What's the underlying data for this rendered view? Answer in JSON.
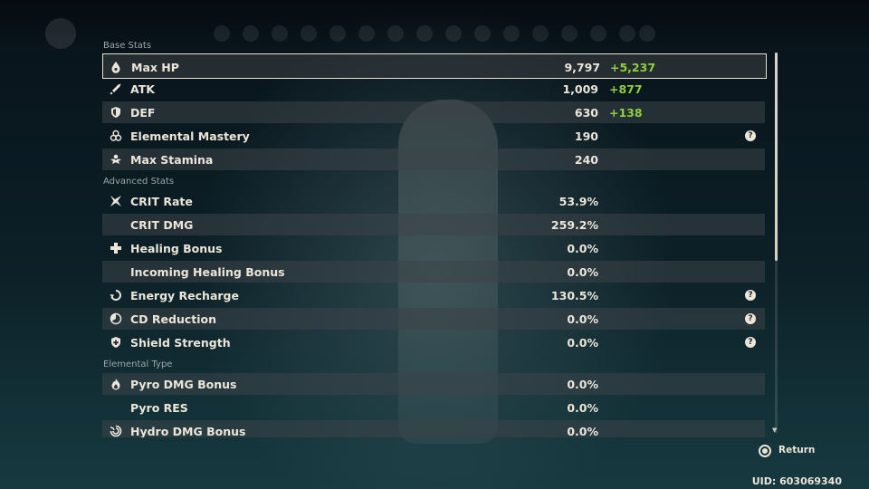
{
  "sections": {
    "base": "Base Stats",
    "advanced": "Advanced Stats",
    "elemental": "Elemental Type"
  },
  "base_stats": [
    {
      "label": "Max HP",
      "value": "9,797",
      "bonus": "+5,237",
      "icon": "hp-drop-icon"
    },
    {
      "label": "ATK",
      "value": "1,009",
      "bonus": "+877",
      "icon": "sword-icon"
    },
    {
      "label": "DEF",
      "value": "630",
      "bonus": "+138",
      "icon": "shield-icon"
    },
    {
      "label": "Elemental Mastery",
      "value": "190",
      "icon": "elemental-mastery-icon",
      "help": true
    },
    {
      "label": "Max Stamina",
      "value": "240",
      "icon": "stamina-icon"
    }
  ],
  "advanced_stats": [
    {
      "label": "CRIT Rate",
      "value": "53.9%",
      "icon": "crit-icon"
    },
    {
      "label": "CRIT DMG",
      "value": "259.2%"
    },
    {
      "label": "Healing Bonus",
      "value": "0.0%",
      "icon": "healing-cross-icon"
    },
    {
      "label": "Incoming Healing Bonus",
      "value": "0.0%"
    },
    {
      "label": "Energy Recharge",
      "value": "130.5%",
      "icon": "energy-recharge-icon",
      "help": true
    },
    {
      "label": "CD Reduction",
      "value": "0.0%",
      "icon": "cd-reduction-icon",
      "help": true
    },
    {
      "label": "Shield Strength",
      "value": "0.0%",
      "icon": "shield-strength-icon",
      "help": true
    }
  ],
  "elemental_stats": [
    {
      "label": "Pyro DMG Bonus",
      "value": "0.0%",
      "icon": "pyro-icon"
    },
    {
      "label": "Pyro RES",
      "value": "0.0%"
    },
    {
      "label": "Hydro DMG Bonus",
      "value": "0.0%",
      "icon": "hydro-icon"
    }
  ],
  "help_symbol": "?",
  "footer": {
    "return_label": "Return",
    "uid": "UID: 603069340"
  },
  "colors": {
    "bonus_green": "#8fd03b",
    "text": "#ece5d8",
    "row_bg": "#3c4448"
  }
}
